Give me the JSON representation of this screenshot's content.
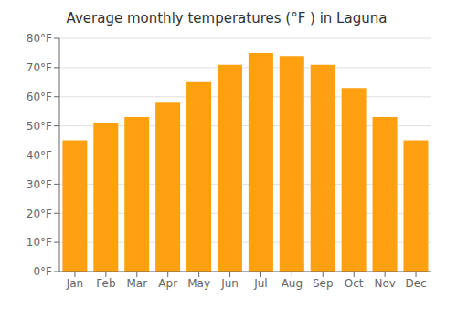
{
  "chart_data": {
    "type": "bar",
    "title": "Average monthly temperatures (°F ) in Laguna",
    "categories": [
      "Jan",
      "Feb",
      "Mar",
      "Apr",
      "May",
      "Jun",
      "Jul",
      "Aug",
      "Sep",
      "Oct",
      "Nov",
      "Dec"
    ],
    "values": [
      45,
      51,
      53,
      58,
      65,
      71,
      75,
      74,
      71,
      63,
      53,
      45
    ],
    "color": "#FFA010",
    "ylim": [
      0,
      80
    ],
    "yticks": [
      {
        "value": 0,
        "label": "0°F"
      },
      {
        "value": 10,
        "label": "10°F"
      },
      {
        "value": 20,
        "label": "20°F"
      },
      {
        "value": 30,
        "label": "30°F"
      },
      {
        "value": 40,
        "label": "40°F"
      },
      {
        "value": 50,
        "label": "50°F"
      },
      {
        "value": 60,
        "label": "60°F"
      },
      {
        "value": 70,
        "label": "70°F"
      },
      {
        "value": 80,
        "label": "80°F"
      }
    ],
    "grid": true
  }
}
